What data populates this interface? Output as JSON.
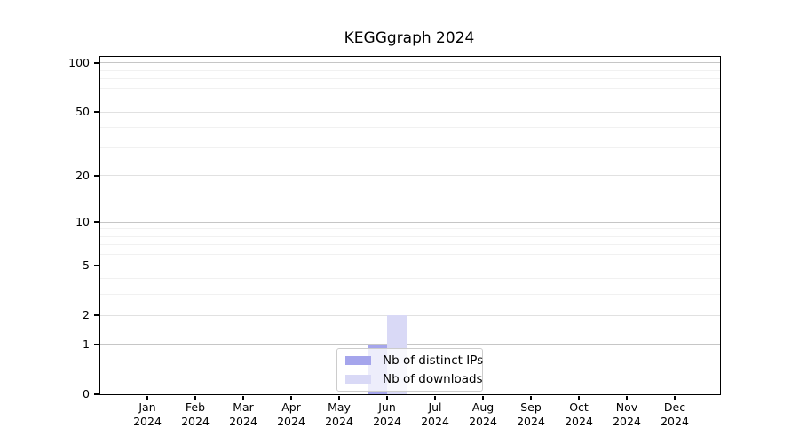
{
  "page": {
    "background": "#ffffff"
  },
  "chart_data": {
    "type": "bar",
    "title": "KEGGgraph 2024",
    "categories": [
      "Jan 2024",
      "Feb 2024",
      "Mar 2024",
      "Apr 2024",
      "May 2024",
      "Jun 2024",
      "Jul 2024",
      "Aug 2024",
      "Sep 2024",
      "Oct 2024",
      "Nov 2024",
      "Dec 2024"
    ],
    "series": [
      {
        "name": "Nb of distinct IPs",
        "color": "#a5a5ec",
        "values": [
          0,
          0,
          0,
          0,
          0,
          1,
          0,
          0,
          0,
          0,
          0,
          0
        ]
      },
      {
        "name": "Nb of downloads",
        "color": "#d9d9f6",
        "values": [
          0,
          0,
          0,
          0,
          0,
          2,
          0,
          0,
          0,
          0,
          0,
          0
        ]
      }
    ],
    "xlabel": "",
    "ylabel": "",
    "y_scale": "log1p",
    "ylim": [
      0,
      110
    ],
    "y_ticks": [
      0,
      1,
      2,
      5,
      10,
      20,
      50,
      100
    ],
    "y_gridlines_strong": [
      1,
      10,
      100
    ],
    "y_gridlines_soft": [
      2,
      5,
      20,
      50
    ],
    "y_gridlines_minor": [
      3,
      4,
      6,
      7,
      8,
      9,
      30,
      40,
      60,
      70,
      80,
      90
    ],
    "grid": true,
    "legend_position": "bottom-center"
  },
  "colors": {
    "grid_strong": "#c6c6c6",
    "grid_soft": "#e1e1e1",
    "grid_minor": "#f1f1f1",
    "axis": "#000000",
    "legend_border": "#cccccc"
  }
}
